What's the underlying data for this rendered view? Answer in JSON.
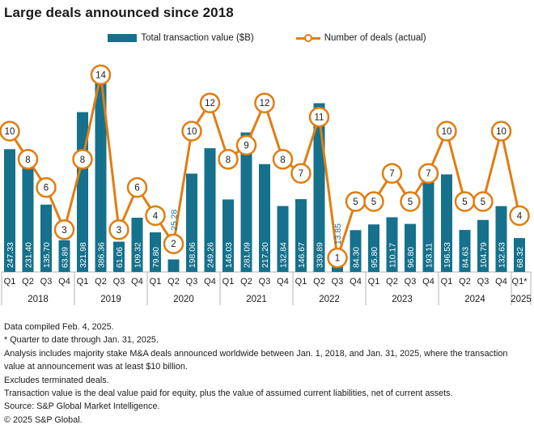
{
  "title": "Large deals announced since 2018",
  "legend": {
    "bar_label": "Total transaction value ($B)",
    "line_label": "Number of deals (actual)"
  },
  "colors": {
    "teal": "#15718C",
    "orange": "#E07D12",
    "axis_gray": "#B3B3B3",
    "text": "#1A1A1A",
    "marker_fill": "#FFFFFF"
  },
  "chart_data": {
    "type": "bar",
    "combo": "bar+line",
    "bar_series_name": "Total transaction value ($B)",
    "line_series_name": "Number of deals (actual)",
    "value_label_decimals": 2,
    "grid": "off",
    "legend_position": "top-center",
    "years": [
      {
        "year": "2018",
        "quarters": [
          "Q1",
          "Q2",
          "Q3",
          "Q4"
        ],
        "transaction_value_b": [
          247.33,
          231.4,
          135.7,
          63.89
        ],
        "num_deals": [
          10,
          8,
          6,
          3
        ]
      },
      {
        "year": "2019",
        "quarters": [
          "Q1",
          "Q2",
          "Q3",
          "Q4"
        ],
        "transaction_value_b": [
          321.98,
          386.36,
          61.06,
          109.32
        ],
        "num_deals": [
          8,
          14,
          3,
          6
        ]
      },
      {
        "year": "2020",
        "quarters": [
          "Q1",
          "Q2",
          "Q3",
          "Q4"
        ],
        "transaction_value_b": [
          79.8,
          25.28,
          198.06,
          249.26
        ],
        "num_deals": [
          4,
          2,
          10,
          12
        ]
      },
      {
        "year": "2021",
        "quarters": [
          "Q1",
          "Q2",
          "Q3",
          "Q4"
        ],
        "transaction_value_b": [
          146.03,
          281.09,
          217.2,
          132.84
        ],
        "num_deals": [
          8,
          9,
          12,
          8
        ]
      },
      {
        "year": "2022",
        "quarters": [
          "Q1",
          "Q2",
          "Q3",
          "Q4"
        ],
        "transaction_value_b": [
          146.67,
          339.89,
          13.85,
          84.3
        ],
        "num_deals": [
          7,
          11,
          1,
          5
        ]
      },
      {
        "year": "2023",
        "quarters": [
          "Q1",
          "Q2",
          "Q3",
          "Q4"
        ],
        "transaction_value_b": [
          95.8,
          110.17,
          96.8,
          193.11
        ],
        "num_deals": [
          5,
          7,
          5,
          7
        ]
      },
      {
        "year": "2024",
        "quarters": [
          "Q1",
          "Q2",
          "Q3",
          "Q4"
        ],
        "transaction_value_b": [
          196.53,
          84.63,
          104.79,
          132.63
        ],
        "num_deals": [
          10,
          5,
          5,
          10
        ]
      },
      {
        "year": "2025",
        "quarters": [
          "Q1*"
        ],
        "transaction_value_b": [
          68.32
        ],
        "num_deals": [
          4
        ]
      }
    ]
  },
  "footnotes": [
    "Data compiled Feb. 4, 2025.",
    "* Quarter to date through Jan. 31, 2025.",
    "Analysis includes majority stake M&A deals announced worldwide between Jan. 1, 2018, and Jan. 31, 2025, where the transaction value at announcement was at least $10 billion.",
    "Excludes terminated deals.",
    "Transaction value is the deal value paid for equity, plus the value of assumed current liabilities, net of current assets.",
    "Source: S&P Global Market Intelligence.",
    "© 2025 S&P Global."
  ]
}
